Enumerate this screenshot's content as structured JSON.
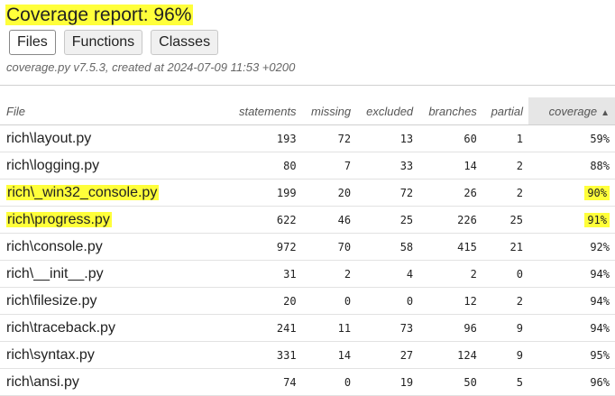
{
  "header": {
    "title": "Coverage report: 96%",
    "tabs": [
      {
        "label": "Files",
        "active": true
      },
      {
        "label": "Functions",
        "active": false
      },
      {
        "label": "Classes",
        "active": false
      }
    ],
    "meta": "coverage.py v7.5.3, created at 2024-07-09 11:53 +0200"
  },
  "table": {
    "columns": [
      "File",
      "statements",
      "missing",
      "excluded",
      "branches",
      "partial",
      "coverage"
    ],
    "sort_arrow": "▲",
    "rows": [
      {
        "file": "rich\\layout.py",
        "statements": "193",
        "missing": "72",
        "excluded": "13",
        "branches": "60",
        "partial": "1",
        "coverage": "59%"
      },
      {
        "file": "rich\\logging.py",
        "statements": "80",
        "missing": "7",
        "excluded": "33",
        "branches": "14",
        "partial": "2",
        "coverage": "88%"
      },
      {
        "file": "rich\\_win32_console.py",
        "statements": "199",
        "missing": "20",
        "excluded": "72",
        "branches": "26",
        "partial": "2",
        "coverage": "90%"
      },
      {
        "file": "rich\\progress.py",
        "statements": "622",
        "missing": "46",
        "excluded": "25",
        "branches": "226",
        "partial": "25",
        "coverage": "91%"
      },
      {
        "file": "rich\\console.py",
        "statements": "972",
        "missing": "70",
        "excluded": "58",
        "branches": "415",
        "partial": "21",
        "coverage": "92%"
      },
      {
        "file": "rich\\__init__.py",
        "statements": "31",
        "missing": "2",
        "excluded": "4",
        "branches": "2",
        "partial": "0",
        "coverage": "94%"
      },
      {
        "file": "rich\\filesize.py",
        "statements": "20",
        "missing": "0",
        "excluded": "0",
        "branches": "12",
        "partial": "2",
        "coverage": "94%"
      },
      {
        "file": "rich\\traceback.py",
        "statements": "241",
        "missing": "11",
        "excluded": "73",
        "branches": "96",
        "partial": "9",
        "coverage": "94%"
      },
      {
        "file": "rich\\syntax.py",
        "statements": "331",
        "missing": "14",
        "excluded": "27",
        "branches": "124",
        "partial": "9",
        "coverage": "95%"
      },
      {
        "file": "rich\\ansi.py",
        "statements": "74",
        "missing": "0",
        "excluded": "19",
        "branches": "50",
        "partial": "5",
        "coverage": "96%"
      }
    ]
  },
  "colors": {
    "highlight": "#ffff3a",
    "sorted_header_bg": "#e6e6e6"
  }
}
